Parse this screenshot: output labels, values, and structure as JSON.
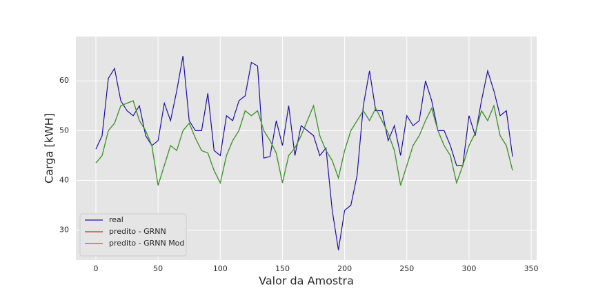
{
  "chart_data": {
    "type": "line",
    "xlabel": "Valor da Amostra",
    "ylabel": "Carga [kWH]",
    "x": [
      0,
      5,
      10,
      15,
      20,
      25,
      30,
      35,
      40,
      45,
      50,
      55,
      60,
      65,
      70,
      75,
      80,
      85,
      90,
      95,
      100,
      105,
      110,
      115,
      120,
      125,
      130,
      135,
      140,
      145,
      150,
      155,
      160,
      165,
      170,
      175,
      180,
      185,
      190,
      195,
      200,
      205,
      210,
      215,
      220,
      225,
      230,
      235,
      240,
      245,
      250,
      255,
      260,
      265,
      270,
      275,
      280,
      285,
      290,
      295,
      300,
      305,
      310,
      315,
      320,
      325,
      330,
      335
    ],
    "series": [
      {
        "name": "real",
        "color": "#1c0ca8",
        "values": [
          46.3,
          49,
          60.5,
          62.5,
          56,
          54,
          53,
          55,
          49,
          47,
          48,
          55.5,
          52,
          58,
          65,
          52,
          50,
          50,
          57.5,
          46,
          45,
          53,
          52,
          56,
          57,
          63.7,
          63,
          44.5,
          44.8,
          52,
          47,
          55,
          45,
          51,
          50,
          49,
          45,
          46.5,
          34,
          26,
          34,
          35,
          41,
          55,
          62,
          54,
          54,
          48,
          51,
          45,
          53,
          51,
          52,
          60,
          56,
          50,
          50,
          47,
          43,
          43,
          53,
          49,
          56,
          62,
          58,
          53,
          54,
          44.8
        ]
      },
      {
        "name": "predito - GRNN",
        "color": "#d62728",
        "values": [
          43.5,
          45,
          50,
          51.5,
          55,
          55.5,
          56,
          52,
          50,
          47,
          39,
          43,
          47,
          46,
          50,
          51.5,
          48.5,
          46,
          45.5,
          42,
          39.5,
          45,
          48,
          50,
          54,
          53,
          54,
          50,
          48,
          45.5,
          39.5,
          45,
          46.5,
          49,
          52,
          55,
          49,
          46,
          44,
          40.5,
          46,
          50,
          52,
          54,
          52,
          54.5,
          52,
          49.5,
          46,
          39,
          43,
          47,
          49,
          52,
          54.5,
          50,
          47,
          45,
          39.5,
          43,
          47,
          49.5,
          54,
          52,
          55,
          49,
          47,
          42
        ]
      },
      {
        "name": "predito - GRNN Mod",
        "color": "#2ca02c",
        "values": [
          43.5,
          45,
          50,
          51.5,
          55,
          55.5,
          56,
          52,
          50,
          47,
          39,
          43,
          47,
          46,
          50,
          51.5,
          48.5,
          46,
          45.5,
          42,
          39.5,
          45,
          48,
          50,
          54,
          53,
          54,
          50,
          48,
          45.5,
          39.5,
          45,
          46.5,
          49,
          52,
          55,
          49,
          46,
          44,
          40.5,
          46,
          50,
          52,
          54,
          52,
          54.5,
          52,
          49.5,
          46,
          39,
          43,
          47,
          49,
          52,
          54.5,
          50,
          47,
          45,
          39.5,
          43,
          47,
          49.5,
          54,
          52,
          55,
          49,
          47,
          42
        ]
      }
    ],
    "xlim": [
      -16.1,
      354.4
    ],
    "ylim": [
      24.0,
      68.9
    ],
    "xticks": [
      0,
      50,
      100,
      150,
      200,
      250,
      300,
      350
    ],
    "yticks": [
      30,
      40,
      50,
      60
    ],
    "grid": true,
    "legend": "lower left"
  }
}
